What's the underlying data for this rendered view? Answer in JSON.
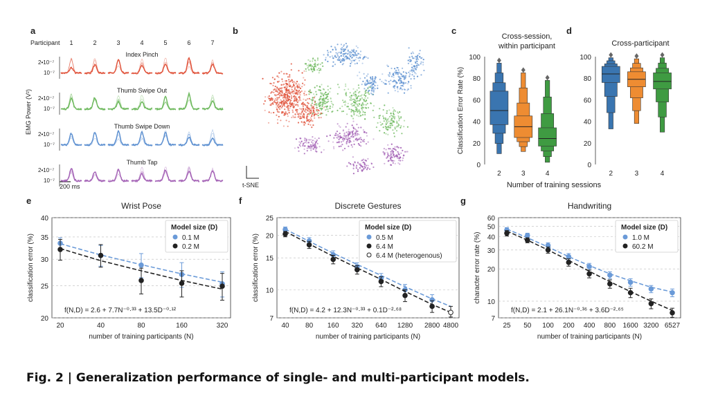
{
  "caption": "Fig. 2 | Generalization performance of single- and multi-participant models.",
  "colors": {
    "red": "#e0523a",
    "green": "#6cb85c",
    "blue": "#5b8fd0",
    "purple": "#a361b5",
    "box_blue": "#3a75b0",
    "box_orange": "#ee8c32",
    "box_green": "#3f9b42",
    "fit_light": "#6a9ad8",
    "fit_dark": "#222222"
  },
  "panels": {
    "a": {
      "letter": "a",
      "participant_label": "Participant",
      "participants": [
        "1",
        "2",
        "3",
        "4",
        "5",
        "6",
        "7"
      ],
      "ylabel": "EMG Power (V²)",
      "tick_hi": "2•10⁻⁷",
      "tick_lo": "10⁻⁷",
      "scale_bar": "200 ms",
      "gestures": [
        {
          "name": "Index Pinch",
          "color": "#e0523a"
        },
        {
          "name": "Thumb Swipe Out",
          "color": "#6cb85c"
        },
        {
          "name": "Thumb Swipe Down",
          "color": "#5b8fd0"
        },
        {
          "name": "Thumb Tap",
          "color": "#a361b5"
        }
      ]
    },
    "b": {
      "letter": "b",
      "axis_label": "t-SNE"
    }
  },
  "chart_data": [
    {
      "panel": "c",
      "type": "box",
      "title": "Cross-session,\nwithin participant",
      "xlabel": "",
      "ylabel": "Classification Error Rate (%)",
      "categories": [
        "2",
        "3",
        "4"
      ],
      "ylim": [
        0,
        100
      ],
      "yticks": [
        0,
        20,
        40,
        60,
        80,
        100
      ],
      "boxes": [
        {
          "category": "2",
          "color": "#3a75b0",
          "whisker_low": 10,
          "q1": 37,
          "median": 50,
          "q3": 68,
          "whisker_high": 94,
          "outliers": []
        },
        {
          "category": "3",
          "color": "#ee8c32",
          "whisker_low": 12,
          "q1": 25,
          "median": 35,
          "q3": 45,
          "whisker_high": 85,
          "outliers": []
        },
        {
          "category": "4",
          "color": "#3f9b42",
          "whisker_low": 2,
          "q1": 17,
          "median": 24,
          "q3": 34,
          "whisker_high": 78,
          "outliers": []
        }
      ]
    },
    {
      "panel": "d",
      "type": "box",
      "title": "Cross-participant",
      "xlabel": "Number of training sessions",
      "ylabel": "",
      "categories": [
        "2",
        "3",
        "4"
      ],
      "ylim": [
        0,
        100
      ],
      "yticks": [
        0,
        20,
        40,
        60,
        80,
        100
      ],
      "boxes": [
        {
          "category": "2",
          "color": "#3a75b0",
          "whisker_low": 33,
          "q1": 76,
          "median": 84,
          "q3": 91,
          "whisker_high": 99,
          "outliers": []
        },
        {
          "category": "3",
          "color": "#ee8c32",
          "whisker_low": 38,
          "q1": 72,
          "median": 79,
          "q3": 86,
          "whisker_high": 98,
          "outliers": []
        },
        {
          "category": "4",
          "color": "#3f9b42",
          "whisker_low": 30,
          "q1": 70,
          "median": 77,
          "q3": 85,
          "whisker_high": 99,
          "outliers": []
        }
      ]
    },
    {
      "panel": "e",
      "type": "line",
      "title": "Wrist Pose",
      "xlabel": "number of training participants (N)",
      "ylabel": "classification error (%)",
      "xscale": "log",
      "yscale": "log",
      "x": [
        20,
        40,
        80,
        160,
        320
      ],
      "xticks": [
        "20",
        "40",
        "80",
        "160",
        "320"
      ],
      "ylim": [
        20,
        40
      ],
      "yticks": [
        20,
        25,
        30,
        35,
        40
      ],
      "legend_title": "Model size (D)",
      "series": [
        {
          "name": "0.1 M",
          "color": "#6a9ad8",
          "values": [
            33.5,
            30.8,
            28.8,
            27.0,
            25.3
          ],
          "err": [
            1.3,
            2.2,
            2.4,
            2.3,
            2.2
          ],
          "fit": [
            33.4,
            30.9,
            28.9,
            27.1,
            25.6
          ]
        },
        {
          "name": "0.2 M",
          "color": "#222222",
          "values": [
            32.1,
            30.8,
            25.9,
            25.4,
            24.9
          ],
          "err": [
            2.3,
            2.4,
            2.3,
            2.3,
            2.3
          ],
          "fit": [
            32.3,
            29.7,
            27.7,
            25.9,
            24.4
          ]
        }
      ],
      "equation": "f(N,D) = 2.6 + 7.7N⁻⁰·³³ + 13.5D⁻⁰·¹²"
    },
    {
      "panel": "f",
      "type": "line",
      "title": "Discrete Gestures",
      "xlabel": "number of training participants (N)",
      "ylabel": "classification error (%)",
      "xscale": "log",
      "yscale": "log",
      "x": [
        40,
        80,
        160,
        320,
        640,
        1280,
        2800,
        4800
      ],
      "xticks": [
        "40",
        "80",
        "160",
        "320",
        "640",
        "1280",
        "2800",
        "4800"
      ],
      "ylim": [
        7,
        25
      ],
      "yticks": [
        7,
        10,
        15,
        20,
        25
      ],
      "legend_title": "Model size (D)",
      "series": [
        {
          "name": "0.5 M",
          "color": "#6a9ad8",
          "values": [
            21.5,
            18.6,
            15.6,
            13.4,
            11.6,
            10.0,
            8.8,
            null
          ],
          "err": [
            0.7,
            0.8,
            0.8,
            0.7,
            0.7,
            0.7,
            0.6,
            null
          ],
          "fit": [
            21.6,
            18.5,
            15.9,
            13.8,
            12.0,
            10.4,
            8.9,
            8.1
          ]
        },
        {
          "name": "6.4 M",
          "color": "#222222",
          "values": [
            20.3,
            17.7,
            14.7,
            12.9,
            11.1,
            9.3,
            8.1,
            null
          ],
          "err": [
            0.7,
            0.8,
            0.8,
            0.7,
            0.7,
            0.7,
            0.6,
            null
          ],
          "fit": [
            21.0,
            17.9,
            15.3,
            13.2,
            11.4,
            9.8,
            8.3,
            7.5
          ]
        },
        {
          "name": "6.4 M (heterogenous)",
          "color": "#ffffff",
          "values": [
            null,
            null,
            null,
            null,
            null,
            null,
            null,
            7.5
          ],
          "err": [
            null,
            null,
            null,
            null,
            null,
            null,
            null,
            0.6
          ],
          "fit": []
        }
      ],
      "equation": "f(N,D) = 4.2 + 12.3N⁻⁰·³³ + 0.1D⁻²·⁶⁸"
    },
    {
      "panel": "g",
      "type": "line",
      "title": "Handwriting",
      "xlabel": "number of training participants (N)",
      "ylabel": "character error rate (%)",
      "xscale": "log",
      "yscale": "log",
      "x": [
        25,
        50,
        100,
        200,
        400,
        800,
        1600,
        3200,
        6527
      ],
      "xticks": [
        "25",
        "50",
        "100",
        "200",
        "400",
        "800",
        "1600",
        "3200",
        "6527"
      ],
      "ylim": [
        7,
        60
      ],
      "yticks": [
        7,
        10,
        20,
        30,
        40,
        50,
        60
      ],
      "legend_title": "Model size (D)",
      "series": [
        {
          "name": "1.0 M",
          "color": "#6a9ad8",
          "values": [
            46,
            41,
            33,
            26,
            21,
            17.5,
            15,
            13,
            12
          ],
          "err": [
            2.5,
            2,
            2,
            1.8,
            1.5,
            1.3,
            1.2,
            1,
            1
          ],
          "fit": [
            47,
            39,
            32,
            26,
            21.5,
            18,
            15.5,
            13.5,
            12.2
          ]
        },
        {
          "name": "60.2 M",
          "color": "#222222",
          "values": [
            43,
            37,
            30,
            23,
            18,
            14.5,
            12,
            9.5,
            7.8
          ],
          "err": [
            2.5,
            2,
            2,
            1.8,
            1.5,
            1.3,
            1.2,
            1,
            0.8
          ],
          "fit": [
            45,
            37,
            30,
            24,
            19,
            15.2,
            12.3,
            10,
            8.2
          ]
        }
      ],
      "equation": "f(N,D) = 2.1 + 26.1N⁻⁰·³⁶ + 3.6D⁻²·⁶⁵"
    }
  ]
}
